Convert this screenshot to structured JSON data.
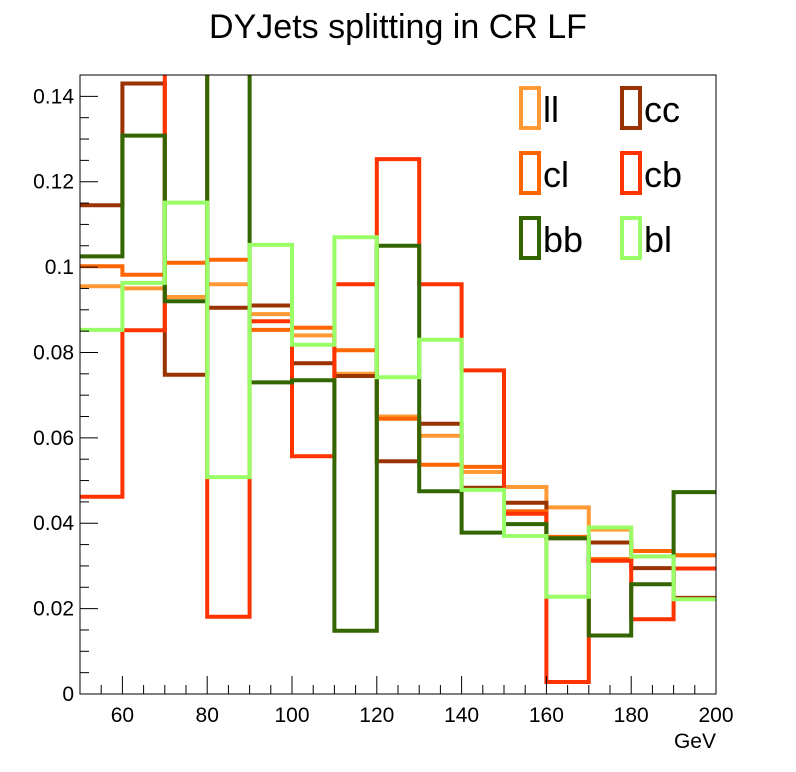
{
  "chart_data": {
    "type": "line",
    "title": "DYJets splitting in CR LF",
    "xlabel": "GeV",
    "ylabel": "",
    "xlim": [
      50,
      200
    ],
    "ylim": [
      0,
      0.145
    ],
    "bin_edges": [
      50,
      60,
      70,
      80,
      90,
      100,
      110,
      120,
      130,
      140,
      150,
      160,
      170,
      180,
      190,
      200
    ],
    "x_ticks": [
      60,
      80,
      100,
      120,
      140,
      160,
      180,
      200
    ],
    "y_ticks": [
      0,
      0.02,
      0.04,
      0.06,
      0.08,
      0.1,
      0.12,
      0.14
    ],
    "x_tick_labels": [
      "60",
      "80",
      "100",
      "120",
      "140",
      "160",
      "180",
      "200"
    ],
    "y_tick_labels": [
      "0",
      "0.02",
      "0.04",
      "0.06",
      "0.08",
      "0.1",
      "0.12",
      "0.14"
    ],
    "legend_position": "top-right",
    "series": [
      {
        "name": "ll",
        "color": "#ff9933",
        "values": [
          0.0955,
          0.095,
          0.093,
          0.096,
          0.089,
          0.084,
          0.075,
          0.065,
          0.0605,
          0.052,
          0.0485,
          0.0437,
          0.0385,
          0.0335,
          0.0325
        ]
      },
      {
        "name": "cc",
        "color": "#993300",
        "values": [
          0.1145,
          0.143,
          0.0748,
          0.0905,
          0.091,
          0.0775,
          0.0745,
          0.0545,
          0.0633,
          0.0483,
          0.0448,
          0.0365,
          0.0355,
          0.0295,
          0.0225
        ]
      },
      {
        "name": "cl",
        "color": "#ff6600",
        "values": [
          0.1002,
          0.0982,
          0.101,
          0.1017,
          0.0853,
          0.0858,
          0.0805,
          0.0645,
          0.0537,
          0.0532,
          0.0428,
          0.0368,
          0.0316,
          0.0335,
          0.0325
        ]
      },
      {
        "name": "cb",
        "color": "#ff3300",
        "values": [
          0.0462,
          0.0852,
          0.149,
          0.0181,
          0.0873,
          0.0557,
          0.096,
          0.1253,
          0.096,
          0.0758,
          0.0422,
          0.0028,
          0.0312,
          0.0175,
          0.0294
        ]
      },
      {
        "name": "bb",
        "color": "#336600",
        "values": [
          0.1025,
          0.1308,
          0.092,
          0.1495,
          0.073,
          0.0735,
          0.0148,
          0.105,
          0.0475,
          0.0378,
          0.0398,
          0.0365,
          0.0137,
          0.0257,
          0.0473
        ]
      },
      {
        "name": "bl",
        "color": "#99ff66",
        "values": [
          0.0853,
          0.0963,
          0.1151,
          0.0508,
          0.1052,
          0.0818,
          0.107,
          0.0742,
          0.083,
          0.0478,
          0.037,
          0.0228,
          0.039,
          0.0322,
          0.0222
        ]
      }
    ]
  }
}
